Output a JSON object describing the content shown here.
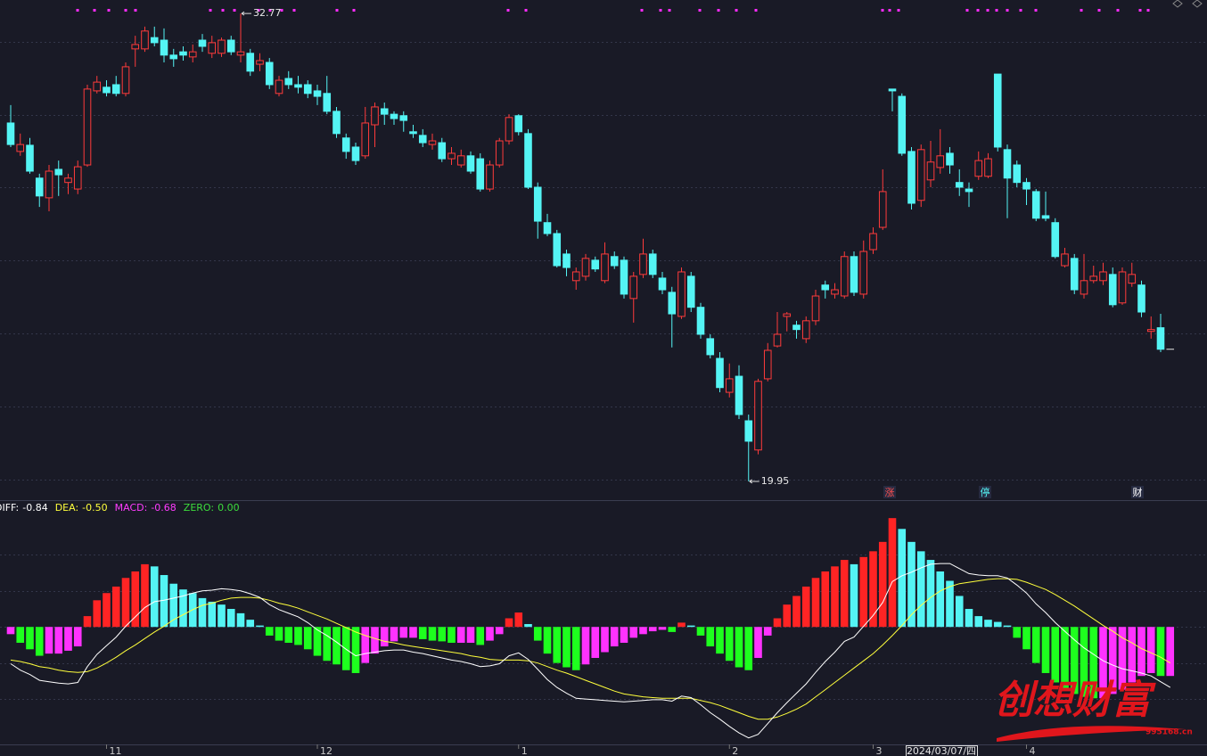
{
  "chart_data": [
    {
      "type": "candlestick",
      "categories": [
        null,
        null,
        null,
        null,
        null,
        null,
        null,
        null,
        null,
        null,
        "11",
        null,
        null,
        null,
        null,
        null,
        null,
        null,
        null,
        null,
        null,
        null,
        null,
        null,
        null,
        null,
        null,
        null,
        null,
        null,
        null,
        null,
        "12",
        null,
        null,
        null,
        null,
        null,
        null,
        null,
        null,
        null,
        null,
        null,
        null,
        null,
        null,
        null,
        null,
        null,
        null,
        null,
        null,
        "1",
        null,
        null,
        null,
        null,
        null,
        null,
        null,
        null,
        null,
        null,
        null,
        null,
        null,
        null,
        null,
        null,
        null,
        null,
        null,
        null,
        null,
        "2",
        null,
        null,
        null,
        null,
        null,
        null,
        null,
        null,
        null,
        null,
        null,
        null,
        null,
        null,
        "3",
        null,
        null,
        null,
        null,
        null,
        null,
        null,
        null,
        null,
        null,
        null,
        null,
        null,
        null,
        null,
        "4",
        null,
        null,
        null,
        null,
        null,
        null,
        null,
        null,
        null,
        null,
        null,
        null,
        null,
        null,
        null
      ],
      "open": [
        29.77,
        28.99,
        29.16,
        28.26,
        27.72,
        28.5,
        28.14,
        27.96,
        28.62,
        30.65,
        30.75,
        30.82,
        30.58,
        31.8,
        31.8,
        32.11,
        32.04,
        31.63,
        31.72,
        31.58,
        32.04,
        31.68,
        31.68,
        32.04,
        31.63,
        31.68,
        31.38,
        31.43,
        30.58,
        30.99,
        30.82,
        30.82,
        30.65,
        30.58,
        30.09,
        29.36,
        29.11,
        28.87,
        29.72,
        30.16,
        30.01,
        29.97,
        29.53,
        29.43,
        29.18,
        29.23,
        28.79,
        28.62,
        28.87,
        28.79,
        27.96,
        28.62,
        29.28,
        29.97,
        29.48,
        28.01,
        27.04,
        26.74,
        26.18,
        25.45,
        25.57,
        26.01,
        25.45,
        26.11,
        26.01,
        24.96,
        25.62,
        26.18,
        25.52,
        25.13,
        24.47,
        25.57,
        24.72,
        23.86,
        23.32,
        22.39,
        22.83,
        21.61,
        20.81,
        22.76,
        23.66,
        24.47,
        24.23,
        23.86,
        24.35,
        25.33,
        25.08,
        25.03,
        26.11,
        25.08,
        26.3,
        26.91,
        30.7,
        30.5,
        28.99,
        27.65,
        28.21,
        28.55,
        28.94,
        28.14,
        27.96,
        28.31,
        28.31,
        31.11,
        29.04,
        28.62,
        28.14,
        27.89,
        27.23,
        27.04,
        25.86,
        26.06,
        25.08,
        25.45,
        25.45,
        25.62,
        24.84,
        25.38,
        25.33,
        24.06,
        24.16,
        23.57
      ],
      "high": [
        30.26,
        29.48,
        29.36,
        28.38,
        28.62,
        28.74,
        28.38,
        28.74,
        30.82,
        31.06,
        30.94,
        31.06,
        31.43,
        32.16,
        32.41,
        32.41,
        32.36,
        31.8,
        31.87,
        31.92,
        32.21,
        32.16,
        32.11,
        32.16,
        32.77,
        31.8,
        31.68,
        31.55,
        31.06,
        31.19,
        31.06,
        30.94,
        30.82,
        31.06,
        30.21,
        29.48,
        29.23,
        30.21,
        30.33,
        30.33,
        30.09,
        30.09,
        29.72,
        29.6,
        29.48,
        29.36,
        29.11,
        29.04,
        28.99,
        28.94,
        28.74,
        29.36,
        30.01,
        30.01,
        29.6,
        28.14,
        27.28,
        26.84,
        26.3,
        25.81,
        26.18,
        26.11,
        26.5,
        26.25,
        26.11,
        25.69,
        26.6,
        26.3,
        25.69,
        25.28,
        25.81,
        25.69,
        24.84,
        23.98,
        23.49,
        23.18,
        23.13,
        21.78,
        22.76,
        23.74,
        24.59,
        24.59,
        24.35,
        24.47,
        25.2,
        25.45,
        25.38,
        26.25,
        26.25,
        26.55,
        26.91,
        28.5,
        30.7,
        30.58,
        29.11,
        29.18,
        29.28,
        29.6,
        29.11,
        28.5,
        28.14,
        28.99,
        28.94,
        31.11,
        29.18,
        28.74,
        28.26,
        27.96,
        27.89,
        27.16,
        26.35,
        26.18,
        26.18,
        25.86,
        25.94,
        25.81,
        25.81,
        25.94,
        25.45,
        24.47,
        24.54,
        23.57
      ],
      "low": [
        29.11,
        28.87,
        28.38,
        27.47,
        27.35,
        27.77,
        27.82,
        27.82,
        28.57,
        30.58,
        30.5,
        30.5,
        30.5,
        31.31,
        31.72,
        31.87,
        31.43,
        31.31,
        31.48,
        31.43,
        31.72,
        31.55,
        31.58,
        31.63,
        31.43,
        31.06,
        31.19,
        30.7,
        30.5,
        30.7,
        30.58,
        30.45,
        30.26,
        30.01,
        29.36,
        28.79,
        28.62,
        28.79,
        29.11,
        29.72,
        29.72,
        29.53,
        29.36,
        29.11,
        29.04,
        28.7,
        28.62,
        28.55,
        28.38,
        27.89,
        27.89,
        28.55,
        29.18,
        29.43,
        27.96,
        26.6,
        26.67,
        25.81,
        25.57,
        25.2,
        25.45,
        25.69,
        25.38,
        25.77,
        24.96,
        24.3,
        25.52,
        25.52,
        25.08,
        23.62,
        24.4,
        24.59,
        23.86,
        23.32,
        22.39,
        22.25,
        21.66,
        19.95,
        20.69,
        22.69,
        23.62,
        24.06,
        23.86,
        23.74,
        24.23,
        24.96,
        24.96,
        24.96,
        25.03,
        24.96,
        26.18,
        26.84,
        30.09,
        28.87,
        27.4,
        27.47,
        28.01,
        28.38,
        28.38,
        27.77,
        27.47,
        28.21,
        28.26,
        28.99,
        27.16,
        28.01,
        27.52,
        27.08,
        27.08,
        26.06,
        25.81,
        25.08,
        24.96,
        25.38,
        25.33,
        24.72,
        24.79,
        25.28,
        24.45,
        23.86,
        23.49,
        23.57
      ],
      "close": [
        29.18,
        29.18,
        28.45,
        27.77,
        28.45,
        28.35,
        28.26,
        28.57,
        30.7,
        30.89,
        30.6,
        30.58,
        31.31,
        31.92,
        32.29,
        31.97,
        31.63,
        31.53,
        31.63,
        31.72,
        31.87,
        31.97,
        32.04,
        31.72,
        31.72,
        31.19,
        31.48,
        30.82,
        30.94,
        30.82,
        30.75,
        30.58,
        30.5,
        30.09,
        29.48,
        28.99,
        28.74,
        29.77,
        30.21,
        30.01,
        29.89,
        29.84,
        29.48,
        29.23,
        29.28,
        28.79,
        28.94,
        28.87,
        28.45,
        27.96,
        28.62,
        29.28,
        29.92,
        29.53,
        28.01,
        27.08,
        26.74,
        25.86,
        25.81,
        25.69,
        26.06,
        25.77,
        26.18,
        25.86,
        25.08,
        25.57,
        26.18,
        25.62,
        25.2,
        24.54,
        25.69,
        24.72,
        23.98,
        23.42,
        22.52,
        22.76,
        21.78,
        21.05,
        22.69,
        23.54,
        23.98,
        24.54,
        24.11,
        24.35,
        25.03,
        25.2,
        25.2,
        26.11,
        25.13,
        26.25,
        26.74,
        27.89,
        30.65,
        28.94,
        27.57,
        29.04,
        28.7,
        28.87,
        28.62,
        28.01,
        27.89,
        28.74,
        28.79,
        29.11,
        28.26,
        28.14,
        27.96,
        27.16,
        27.16,
        26.11,
        26.18,
        25.2,
        25.45,
        25.57,
        25.69,
        24.79,
        25.69,
        25.62,
        24.59,
        24.11,
        23.57,
        23.57
      ],
      "up_color": "#ff3b3b",
      "down_color": "#54f4f4",
      "flat_color": "#e8e8e8",
      "ylim": [
        19.46,
        33.14
      ],
      "yticks": [
        20,
        22,
        24,
        26,
        28,
        30,
        32
      ],
      "grid": true,
      "max_label": 32.77,
      "min_label": 19.95,
      "badges": [
        {
          "text": "涨",
          "color": "#ff5050"
        },
        {
          "text": "停",
          "color": "#54f4f4"
        },
        {
          "text": "财",
          "color": "#ffffff"
        }
      ],
      "cursor_label": "2024/03/07/四"
    },
    {
      "type": "macd",
      "legend": [
        {
          "name": "DIFF:",
          "value": -0.84,
          "color": "#ffffff"
        },
        {
          "name": "DEA:",
          "value": -0.5,
          "label": "-0.50",
          "color": "#ffff3c"
        },
        {
          "name": "MACD:",
          "value": -0.68,
          "color": "#ff3cff"
        },
        {
          "name": "ZERO:",
          "value": 0,
          "label": "0.00",
          "color": "#3cdc3c"
        }
      ],
      "diff": {
        "color": "#ffffff",
        "values": [
          -0.51,
          -0.6,
          -0.66,
          -0.74,
          -0.76,
          -0.78,
          -0.79,
          -0.77,
          -0.55,
          -0.38,
          -0.26,
          -0.14,
          0.01,
          0.14,
          0.27,
          0.35,
          0.37,
          0.4,
          0.43,
          0.47,
          0.5,
          0.51,
          0.53,
          0.52,
          0.5,
          0.46,
          0.41,
          0.31,
          0.24,
          0.19,
          0.14,
          0.06,
          -0.04,
          -0.12,
          -0.21,
          -0.31,
          -0.4,
          -0.37,
          -0.35,
          -0.33,
          -0.32,
          -0.32,
          -0.35,
          -0.37,
          -0.4,
          -0.43,
          -0.46,
          -0.48,
          -0.51,
          -0.55,
          -0.54,
          -0.51,
          -0.4,
          -0.36,
          -0.45,
          -0.59,
          -0.73,
          -0.84,
          -0.92,
          -0.99,
          -1.0,
          -1.01,
          -1.02,
          -1.03,
          -1.04,
          -1.03,
          -1.02,
          -1.01,
          -1.01,
          -1.03,
          -0.96,
          -0.98,
          -1.08,
          -1.19,
          -1.28,
          -1.38,
          -1.47,
          -1.54,
          -1.49,
          -1.34,
          -1.19,
          -1.05,
          -0.92,
          -0.79,
          -0.63,
          -0.48,
          -0.35,
          -0.2,
          -0.14,
          0.01,
          0.16,
          0.34,
          0.63,
          0.71,
          0.76,
          0.82,
          0.87,
          0.88,
          0.88,
          0.81,
          0.74,
          0.72,
          0.71,
          0.71,
          0.68,
          0.58,
          0.47,
          0.32,
          0.2,
          0.06,
          -0.06,
          -0.18,
          -0.29,
          -0.38,
          -0.47,
          -0.53,
          -0.58,
          -0.61,
          -0.64,
          -0.68,
          -0.76,
          -0.84
        ]
      },
      "dea": {
        "color": "#ffff3c",
        "values": [
          -0.46,
          -0.48,
          -0.51,
          -0.55,
          -0.57,
          -0.6,
          -0.62,
          -0.63,
          -0.62,
          -0.57,
          -0.5,
          -0.42,
          -0.33,
          -0.25,
          -0.16,
          -0.07,
          0.01,
          0.1,
          0.17,
          0.24,
          0.3,
          0.33,
          0.37,
          0.4,
          0.41,
          0.41,
          0.4,
          0.37,
          0.33,
          0.3,
          0.26,
          0.21,
          0.16,
          0.11,
          0.05,
          -0.01,
          -0.07,
          -0.12,
          -0.16,
          -0.2,
          -0.22,
          -0.25,
          -0.27,
          -0.29,
          -0.31,
          -0.33,
          -0.35,
          -0.37,
          -0.4,
          -0.42,
          -0.45,
          -0.46,
          -0.46,
          -0.46,
          -0.47,
          -0.5,
          -0.55,
          -0.6,
          -0.64,
          -0.69,
          -0.74,
          -0.79,
          -0.84,
          -0.89,
          -0.93,
          -0.95,
          -0.97,
          -0.98,
          -0.99,
          -0.99,
          -0.99,
          -0.99,
          -1.02,
          -1.05,
          -1.09,
          -1.14,
          -1.19,
          -1.24,
          -1.28,
          -1.28,
          -1.25,
          -1.2,
          -1.14,
          -1.07,
          -0.97,
          -0.87,
          -0.77,
          -0.67,
          -0.57,
          -0.47,
          -0.37,
          -0.25,
          -0.12,
          0.02,
          0.17,
          0.3,
          0.41,
          0.5,
          0.56,
          0.6,
          0.62,
          0.64,
          0.66,
          0.67,
          0.67,
          0.66,
          0.62,
          0.57,
          0.52,
          0.45,
          0.37,
          0.29,
          0.2,
          0.11,
          0.02,
          -0.06,
          -0.15,
          -0.22,
          -0.3,
          -0.36,
          -0.42,
          -0.5
        ]
      },
      "macd": {
        "colors": {
          "pos_rise": "#ff2424",
          "pos_fall": "#54f4f4",
          "neg_fall": "#1eff1e",
          "neg_rise": "#ff32ff"
        },
        "values": [
          -0.1,
          -0.22,
          -0.31,
          -0.4,
          -0.37,
          -0.37,
          -0.33,
          -0.27,
          0.15,
          0.37,
          0.47,
          0.56,
          0.68,
          0.77,
          0.87,
          0.84,
          0.72,
          0.6,
          0.52,
          0.47,
          0.4,
          0.35,
          0.31,
          0.25,
          0.19,
          0.1,
          0.02,
          -0.12,
          -0.19,
          -0.22,
          -0.25,
          -0.31,
          -0.4,
          -0.47,
          -0.52,
          -0.6,
          -0.64,
          -0.5,
          -0.37,
          -0.27,
          -0.2,
          -0.15,
          -0.15,
          -0.17,
          -0.19,
          -0.2,
          -0.22,
          -0.22,
          -0.22,
          -0.25,
          -0.19,
          -0.1,
          0.12,
          0.2,
          0.04,
          -0.19,
          -0.37,
          -0.5,
          -0.56,
          -0.6,
          -0.52,
          -0.43,
          -0.35,
          -0.27,
          -0.22,
          -0.15,
          -0.1,
          -0.06,
          -0.04,
          -0.07,
          0.06,
          0.02,
          -0.12,
          -0.27,
          -0.37,
          -0.47,
          -0.56,
          -0.6,
          -0.43,
          -0.12,
          0.12,
          0.31,
          0.43,
          0.56,
          0.68,
          0.77,
          0.84,
          0.93,
          0.87,
          0.97,
          1.05,
          1.18,
          1.51,
          1.36,
          1.18,
          1.05,
          0.93,
          0.77,
          0.64,
          0.43,
          0.25,
          0.15,
          0.1,
          0.07,
          0.02,
          -0.15,
          -0.31,
          -0.5,
          -0.64,
          -0.77,
          -0.87,
          -0.93,
          -0.97,
          -0.99,
          -0.99,
          -0.93,
          -0.87,
          -0.77,
          -0.68,
          -0.64,
          -0.68,
          -0.68
        ]
      },
      "ylim": [
        -1.63,
        1.71
      ],
      "yticks": [
        -1,
        -0.5,
        0,
        0.5,
        1
      ],
      "grid": true
    }
  ],
  "watermark": {
    "title": "创想财富",
    "url": "995168.cn"
  }
}
